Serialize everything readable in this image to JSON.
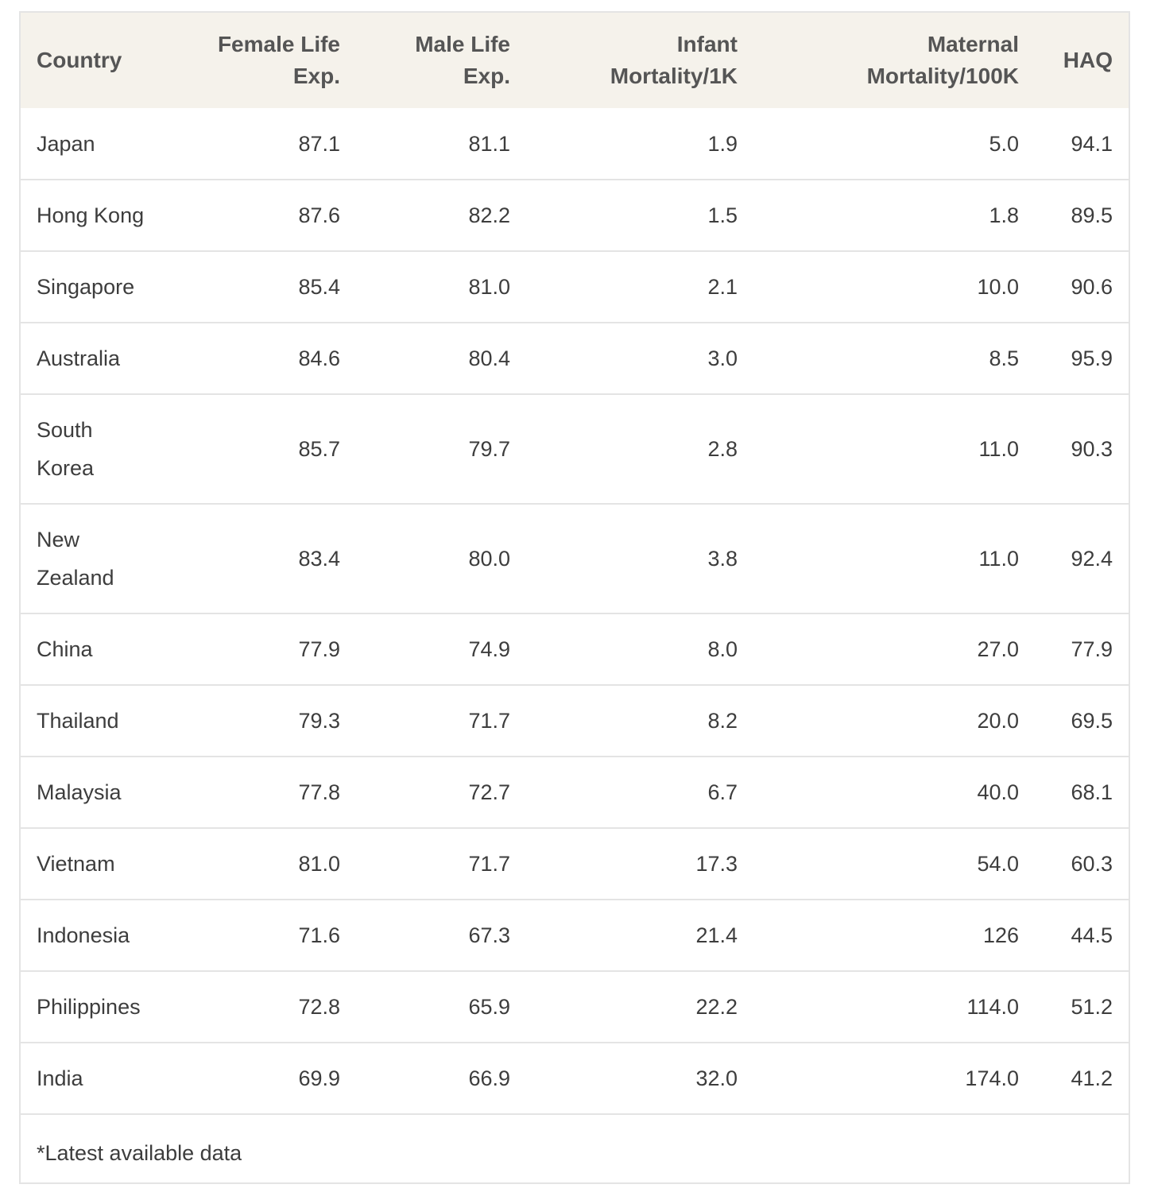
{
  "headers": {
    "country": "Country",
    "female": [
      "Female Life",
      "Exp."
    ],
    "male": [
      "Male Life",
      "Exp."
    ],
    "infant": [
      "Infant",
      "Mortality/1K"
    ],
    "maternal": [
      "Maternal",
      "Mortality/100K"
    ],
    "haq": "HAQ"
  },
  "rows": [
    {
      "country": [
        "Japan"
      ],
      "female": "87.1",
      "male": "81.1",
      "infant": "1.9",
      "maternal": "5.0",
      "haq": "94.1"
    },
    {
      "country": [
        "Hong Kong"
      ],
      "female": "87.6",
      "male": "82.2",
      "infant": "1.5",
      "maternal": "1.8",
      "haq": "89.5"
    },
    {
      "country": [
        "Singapore"
      ],
      "female": "85.4",
      "male": "81.0",
      "infant": "2.1",
      "maternal": "10.0",
      "haq": "90.6"
    },
    {
      "country": [
        "Australia"
      ],
      "female": "84.6",
      "male": "80.4",
      "infant": "3.0",
      "maternal": "8.5",
      "haq": "95.9"
    },
    {
      "country": [
        "South",
        "Korea"
      ],
      "female": "85.7",
      "male": "79.7",
      "infant": "2.8",
      "maternal": "11.0",
      "haq": "90.3"
    },
    {
      "country": [
        "New",
        "Zealand"
      ],
      "female": "83.4",
      "male": "80.0",
      "infant": "3.8",
      "maternal": "11.0",
      "haq": "92.4"
    },
    {
      "country": [
        "China"
      ],
      "female": "77.9",
      "male": "74.9",
      "infant": "8.0",
      "maternal": "27.0",
      "haq": "77.9"
    },
    {
      "country": [
        "Thailand"
      ],
      "female": "79.3",
      "male": "71.7",
      "infant": "8.2",
      "maternal": "20.0",
      "haq": "69.5"
    },
    {
      "country": [
        "Malaysia"
      ],
      "female": "77.8",
      "male": "72.7",
      "infant": "6.7",
      "maternal": "40.0",
      "haq": "68.1"
    },
    {
      "country": [
        "Vietnam"
      ],
      "female": "81.0",
      "male": "71.7",
      "infant": "17.3",
      "maternal": "54.0",
      "haq": "60.3"
    },
    {
      "country": [
        "Indonesia"
      ],
      "female": "71.6",
      "male": "67.3",
      "infant": "21.4",
      "maternal": "126",
      "haq": "44.5"
    },
    {
      "country": [
        "Philippines"
      ],
      "female": "72.8",
      "male": "65.9",
      "infant": "22.2",
      "maternal": "114.0",
      "haq": "51.2"
    },
    {
      "country": [
        "India"
      ],
      "female": "69.9",
      "male": "66.9",
      "infant": "32.0",
      "maternal": "174.0",
      "haq": "41.2"
    }
  ],
  "footnote": "*Latest available data"
}
